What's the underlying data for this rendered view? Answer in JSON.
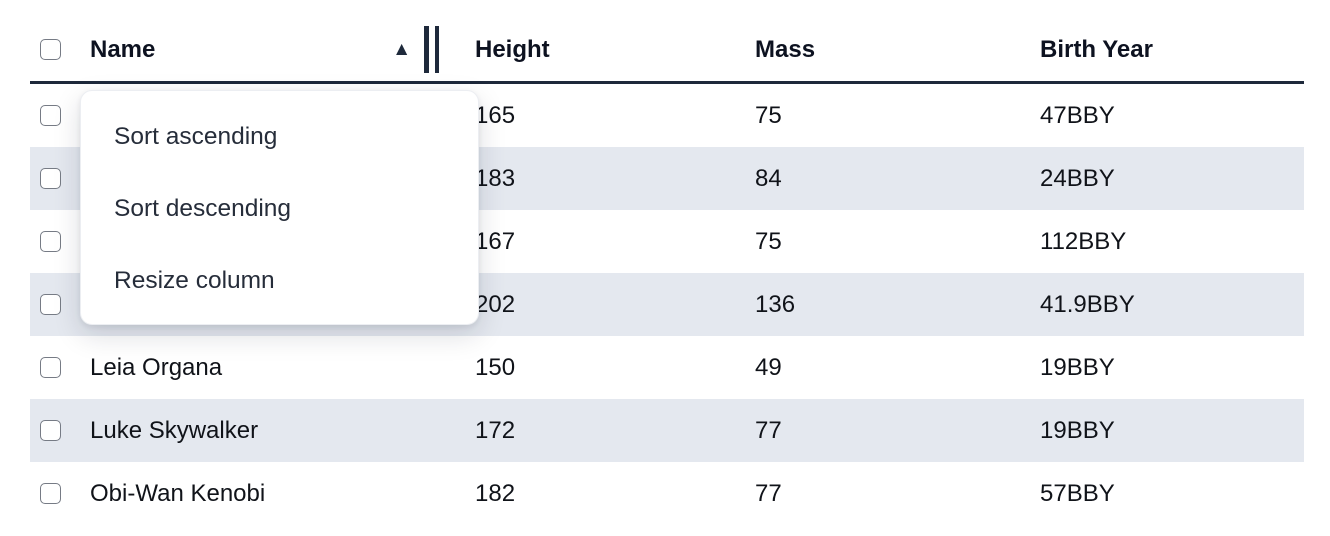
{
  "table": {
    "columns": [
      {
        "label": "Name"
      },
      {
        "label": "Height"
      },
      {
        "label": "Mass"
      },
      {
        "label": "Birth Year"
      }
    ],
    "sort": {
      "column": "Name",
      "direction": "ascending",
      "indicator_glyph": "▲"
    },
    "rows": [
      {
        "name": "",
        "height": "165",
        "mass": "75",
        "birth_year": "47BBY",
        "name_occluded_by_menu": true
      },
      {
        "name": "",
        "height": "183",
        "mass": "84",
        "birth_year": "24BBY",
        "name_occluded_by_menu": true
      },
      {
        "name": "",
        "height": "167",
        "mass": "75",
        "birth_year": "112BBY",
        "name_occluded_by_menu": true
      },
      {
        "name": "",
        "height": "202",
        "mass": "136",
        "birth_year": "41.9BBY",
        "name_occluded_by_menu": true
      },
      {
        "name": "Leia Organa",
        "height": "150",
        "mass": "49",
        "birth_year": "19BBY"
      },
      {
        "name": "Luke Skywalker",
        "height": "172",
        "mass": "77",
        "birth_year": "19BBY"
      },
      {
        "name": "Obi-Wan Kenobi",
        "height": "182",
        "mass": "77",
        "birth_year": "57BBY"
      }
    ]
  },
  "column_menu": {
    "items": [
      {
        "label": "Sort ascending"
      },
      {
        "label": "Sort descending"
      },
      {
        "label": "Resize column"
      }
    ]
  },
  "colors": {
    "stripe_row": "#e4e8ef",
    "header_border": "#1e293b",
    "body_text": "#101319",
    "menu_text": "#262d3a",
    "checkbox_border": "#767b85"
  }
}
